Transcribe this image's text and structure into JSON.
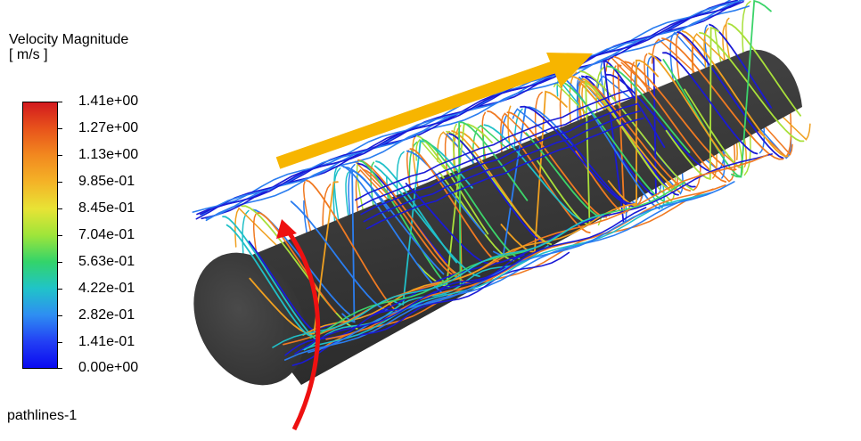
{
  "legend": {
    "title": "Velocity Magnitude",
    "unit": "[ m/s ]",
    "ticks": [
      "1.41e+00",
      "1.27e+00",
      "1.13e+00",
      "9.85e-01",
      "8.45e-01",
      "7.04e-01",
      "5.63e-01",
      "4.22e-01",
      "2.82e-01",
      "1.41e-01",
      "0.00e+00"
    ],
    "min": 0.0,
    "max": 1.41
  },
  "object_name": "pathlines-1",
  "colors": {
    "cylinder": "#3a3a3a",
    "flow_arrow": "#f7b500",
    "rotation_arrow": "#ee1111",
    "pathline_palette": [
      "#1a1ad6",
      "#2a7df0",
      "#20c0c8",
      "#3cd46a",
      "#a8e03a",
      "#f0a020",
      "#f07a22"
    ]
  },
  "annotations": {
    "flow_arrow": "axial-flow-direction",
    "rotation_arrow": "rotation-direction"
  }
}
